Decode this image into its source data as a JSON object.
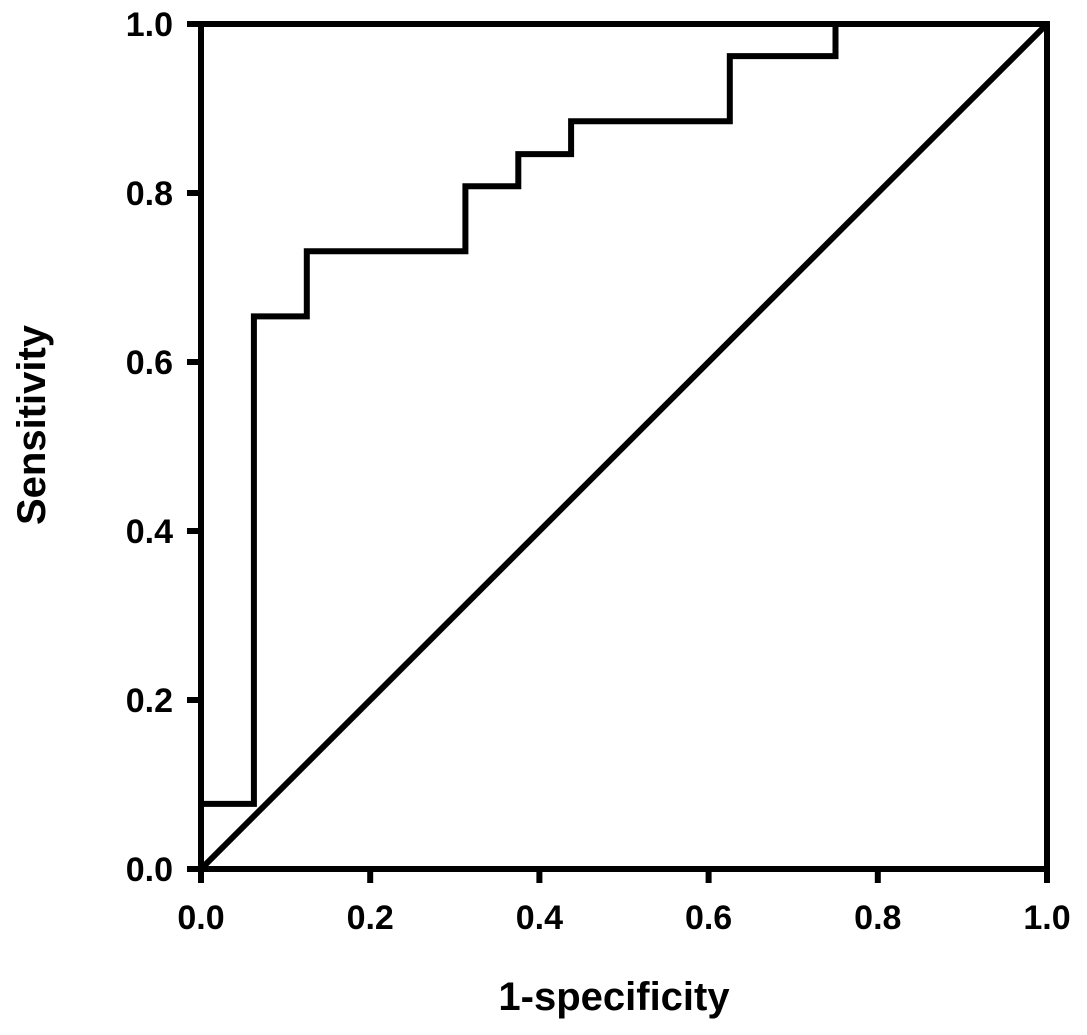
{
  "chart_data": {
    "type": "line",
    "title": "",
    "xlabel": "1-specificity",
    "ylabel": "Sensitivity",
    "xlim": [
      0.0,
      1.0
    ],
    "ylim": [
      0.0,
      1.0
    ],
    "x_ticks": [
      "0.0",
      "0.2",
      "0.4",
      "0.6",
      "0.8",
      "1.0"
    ],
    "y_ticks": [
      "0.0",
      "0.2",
      "0.4",
      "0.6",
      "0.8",
      "1.0"
    ],
    "grid": false,
    "legend": "none",
    "color": "#000000",
    "series": [
      {
        "style": "step",
        "points": [
          [
            0.0,
            0.077
          ],
          [
            0.0625,
            0.077
          ],
          [
            0.0625,
            0.654
          ],
          [
            0.125,
            0.654
          ],
          [
            0.125,
            0.731
          ],
          [
            0.3125,
            0.731
          ],
          [
            0.3125,
            0.808
          ],
          [
            0.375,
            0.808
          ],
          [
            0.375,
            0.846
          ],
          [
            0.4375,
            0.846
          ],
          [
            0.4375,
            0.885
          ],
          [
            0.625,
            0.885
          ],
          [
            0.625,
            0.962
          ],
          [
            0.75,
            0.962
          ],
          [
            0.75,
            1.0
          ],
          [
            1.0,
            1.0
          ]
        ]
      },
      {
        "style": "reference",
        "points": [
          [
            0.0,
            0.0
          ],
          [
            1.0,
            1.0
          ]
        ]
      }
    ]
  }
}
